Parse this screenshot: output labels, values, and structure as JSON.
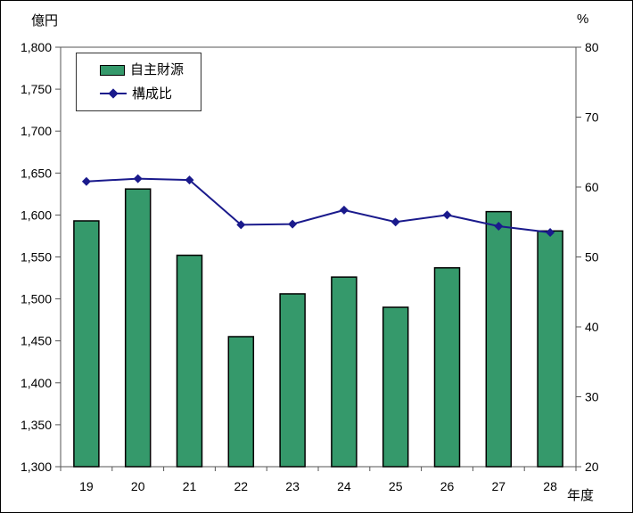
{
  "units": {
    "left_axis_unit": "億円",
    "right_axis_unit": "%",
    "x_axis_unit": "年度"
  },
  "colors": {
    "background": "#FFFFFF",
    "bar_fill": "#35996B",
    "bar_border": "#000000",
    "line": "#1A1A8C",
    "axis": "#555555",
    "text": "#000000",
    "frame": "#000000"
  },
  "chart_data": {
    "type": "bar+line",
    "categories": [
      "19",
      "20",
      "21",
      "22",
      "23",
      "24",
      "25",
      "26",
      "27",
      "28"
    ],
    "series": [
      {
        "name": "自主財源",
        "type": "bar",
        "axis": "left",
        "unit": "億円",
        "values": [
          1593,
          1631,
          1552,
          1455,
          1506,
          1526,
          1490,
          1537,
          1604,
          1581
        ]
      },
      {
        "name": "構成比",
        "type": "line",
        "axis": "right",
        "unit": "%",
        "values": [
          60.8,
          61.2,
          61.0,
          54.6,
          54.7,
          56.7,
          55.0,
          56.0,
          54.4,
          53.5
        ]
      }
    ],
    "left_axis": {
      "label": "億円",
      "min": 1300,
      "max": 1800,
      "step": 50,
      "tick_labels": [
        "1,800",
        "1,750",
        "1,700",
        "1,650",
        "1,600",
        "1,550",
        "1,500",
        "1,450",
        "1,400",
        "1,350",
        "1,300"
      ]
    },
    "right_axis": {
      "label": "%",
      "min": 20,
      "max": 80,
      "step": 10,
      "tick_labels": [
        "80",
        "70",
        "60",
        "50",
        "40",
        "30",
        "20"
      ]
    },
    "x_axis": {
      "label": "年度",
      "tick_labels": [
        "19",
        "20",
        "21",
        "22",
        "23",
        "24",
        "25",
        "26",
        "27",
        "28"
      ]
    },
    "grid": false,
    "legend_position": "top-left-inside"
  }
}
